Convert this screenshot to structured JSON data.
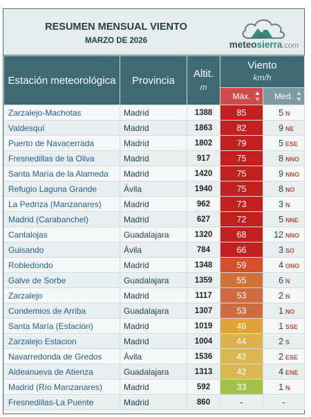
{
  "header": {
    "title": "RESUMEN MENSUAL VIENTO",
    "subtitle": "MARZO DE 2026",
    "logo": {
      "brand_a": "meteo",
      "brand_b": "sierra",
      "domain": ".com"
    }
  },
  "columns": {
    "station": "Estación meteorológica",
    "province": "Provincia",
    "altitude": "Altit.",
    "altitude_unit": "m",
    "wind": "Viento",
    "wind_unit": "km/h",
    "max": "Máx.",
    "avg": "Med."
  },
  "colors": {
    "header_bg": "#3f6a73",
    "max_header": "#cf4b4b",
    "avg_header": "#7e9ba1"
  },
  "rows": [
    {
      "station": "Zarzalejo-Machotas",
      "province": "Madrid",
      "altitude": "1388",
      "max": "85",
      "max_color": "#c21f1f",
      "avg": "5",
      "dir": "N"
    },
    {
      "station": "Valdesquí",
      "province": "Madrid",
      "altitude": "1863",
      "max": "82",
      "max_color": "#c21f1f",
      "avg": "9",
      "dir": "NE"
    },
    {
      "station": "Puerto de Navacerrada",
      "province": "Madrid",
      "altitude": "1802",
      "max": "79",
      "max_color": "#c21f1f",
      "avg": "5",
      "dir": "ESE"
    },
    {
      "station": "Fresnedillas de la Oliva",
      "province": "Madrid",
      "altitude": "917",
      "max": "75",
      "max_color": "#c21f1f",
      "avg": "8",
      "dir": "NNO"
    },
    {
      "station": "Santa María de la Alameda",
      "province": "Madrid",
      "altitude": "1420",
      "max": "75",
      "max_color": "#c21f1f",
      "avg": "9",
      "dir": "NNO"
    },
    {
      "station": "Refugio Laguna Grande",
      "province": "Ávila",
      "altitude": "1940",
      "max": "75",
      "max_color": "#c21f1f",
      "avg": "8",
      "dir": "NO"
    },
    {
      "station": "La Pedriza (Manzanares)",
      "province": "Madrid",
      "altitude": "962",
      "max": "73",
      "max_color": "#c21f1f",
      "avg": "3",
      "dir": "N"
    },
    {
      "station": "Madrid (Carabanchel)",
      "province": "Madrid",
      "altitude": "627",
      "max": "72",
      "max_color": "#c21f1f",
      "avg": "5",
      "dir": "NNE"
    },
    {
      "station": "Cantalojas",
      "province": "Guadalajara",
      "altitude": "1320",
      "max": "68",
      "max_color": "#c21f1f",
      "avg": "12",
      "dir": "NNO"
    },
    {
      "station": "Guisando",
      "province": "Ávila",
      "altitude": "784",
      "max": "66",
      "max_color": "#c21f1f",
      "avg": "3",
      "dir": "SO"
    },
    {
      "station": "Robledondo",
      "province": "Madrid",
      "altitude": "1348",
      "max": "59",
      "max_color": "#d64f2a",
      "avg": "4",
      "dir": "ONO"
    },
    {
      "station": "Galve de Sorbe",
      "province": "Guadalajara",
      "altitude": "1359",
      "max": "55",
      "max_color": "#d2703b",
      "avg": "6",
      "dir": "N"
    },
    {
      "station": "Zarzalejo",
      "province": "Madrid",
      "altitude": "1117",
      "max": "53",
      "max_color": "#cf6b41",
      "avg": "2",
      "dir": "N"
    },
    {
      "station": "Condemios de Arriba",
      "province": "Guadalajara",
      "altitude": "1307",
      "max": "53",
      "max_color": "#cf6b41",
      "avg": "1",
      "dir": "NO"
    },
    {
      "station": "Santa María (Estación)",
      "province": "Madrid",
      "altitude": "1019",
      "max": "46",
      "max_color": "#dfa33a",
      "avg": "1",
      "dir": "SSE"
    },
    {
      "station": "Zarzalejo Estacion",
      "province": "Madrid",
      "altitude": "1004",
      "max": "44",
      "max_color": "#dfb04a",
      "avg": "2",
      "dir": "S"
    },
    {
      "station": "Navarredonda de Gredos",
      "province": "Ávila",
      "altitude": "1536",
      "max": "42",
      "max_color": "#dcb64e",
      "avg": "2",
      "dir": "ESE"
    },
    {
      "station": "Aldeanueva de Atienza",
      "province": "Guadalajara",
      "altitude": "1313",
      "max": "42",
      "max_color": "#dcb64e",
      "avg": "4",
      "dir": "ENE"
    },
    {
      "station": "Madrid (Río Manzanares)",
      "province": "Madrid",
      "altitude": "592",
      "max": "33",
      "max_color": "#a5c04a",
      "avg": "1",
      "dir": "N"
    },
    {
      "station": "Fresnedillas-La Puente",
      "province": "Madrid",
      "altitude": "860",
      "max": "-",
      "max_color": "",
      "avg": "-",
      "dir": ""
    }
  ]
}
